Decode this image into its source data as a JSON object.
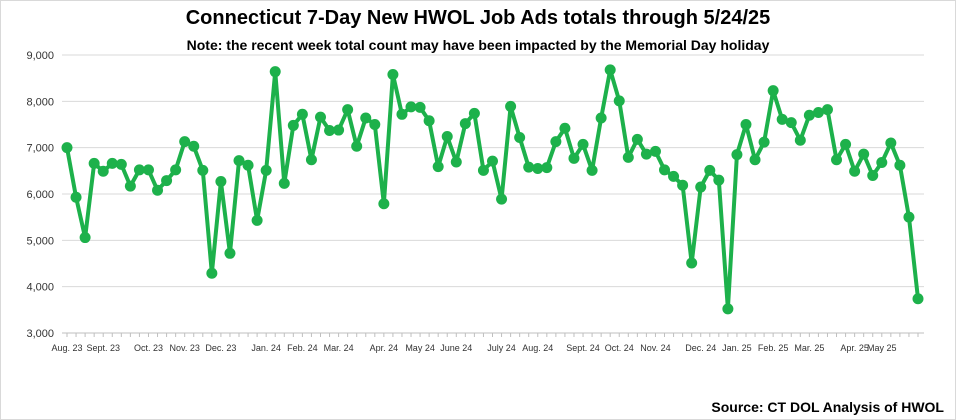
{
  "chart_data": {
    "type": "line",
    "title": "Connecticut 7-Day New HWOL Job Ads totals through 5/24/25",
    "subtitle": "Note: the recent week total count may have been impacted by the Memorial Day holiday",
    "source": "Source: CT DOL Analysis of HWOL",
    "ylim": [
      3000,
      9000
    ],
    "ytick_labels": [
      "3,000",
      "4,000",
      "5,000",
      "6,000",
      "7,000",
      "8,000",
      "9,000"
    ],
    "ytick_values": [
      3000,
      4000,
      5000,
      6000,
      7000,
      8000,
      9000
    ],
    "grid": true,
    "line_color": "#1db14b",
    "x_labels": [
      {
        "label": "Aug. 23",
        "index": 0
      },
      {
        "label": "Sept. 23",
        "index": 4
      },
      {
        "label": "Oct. 23",
        "index": 9
      },
      {
        "label": "Nov. 23",
        "index": 13
      },
      {
        "label": "Dec. 23",
        "index": 17
      },
      {
        "label": "Jan. 24",
        "index": 22
      },
      {
        "label": "Feb. 24",
        "index": 26
      },
      {
        "label": "Mar. 24",
        "index": 30
      },
      {
        "label": "Apr. 24",
        "index": 35
      },
      {
        "label": "May 24",
        "index": 39
      },
      {
        "label": "June 24",
        "index": 43
      },
      {
        "label": "July 24",
        "index": 48
      },
      {
        "label": "Aug. 24",
        "index": 52
      },
      {
        "label": "Sept. 24",
        "index": 57
      },
      {
        "label": "Oct. 24",
        "index": 61
      },
      {
        "label": "Nov. 24",
        "index": 65
      },
      {
        "label": "Dec. 24",
        "index": 70
      },
      {
        "label": "Jan. 25",
        "index": 74
      },
      {
        "label": "Feb. 25",
        "index": 78
      },
      {
        "label": "Mar. 25",
        "index": 82
      },
      {
        "label": "Apr. 25",
        "index": 87
      },
      {
        "label": "May 25",
        "index": 90
      }
    ],
    "series": [
      {
        "values": [
          7000,
          5930,
          5060,
          6660,
          6490,
          6660,
          6640,
          6170,
          6520,
          6520,
          6080,
          6290,
          6520,
          7130,
          7030,
          6510,
          4290,
          6270,
          4720,
          6720,
          6620,
          5430,
          6510,
          8640,
          6230,
          7480,
          7720,
          6740,
          7660,
          7370,
          7380,
          7820,
          7030,
          7640,
          7500,
          5790,
          8580,
          7720,
          7880,
          7870,
          7580,
          6590,
          7240,
          6690,
          7520,
          7740,
          6510,
          6710,
          5890,
          7890,
          7220,
          6580,
          6550,
          6570,
          7130,
          7420,
          6770,
          7070,
          6510,
          7640,
          8680,
          8010,
          6790,
          7180,
          6860,
          6920,
          6520,
          6380,
          6190,
          4510,
          6150,
          6510,
          6300,
          3520,
          6850,
          7500,
          6740,
          7120,
          8230,
          7610,
          7540,
          7160,
          7700,
          7760,
          7820,
          6740,
          7070,
          6490,
          6860,
          6400,
          6680,
          7100,
          6620,
          5500,
          3740
        ]
      }
    ]
  }
}
